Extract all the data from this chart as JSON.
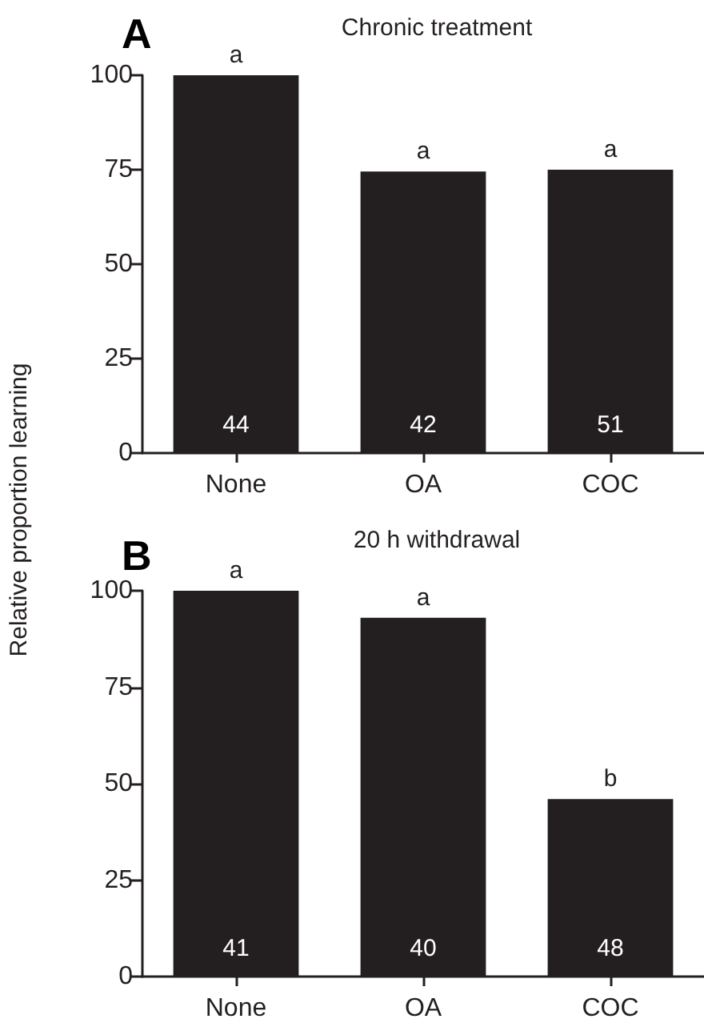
{
  "chart_data": [
    {
      "type": "bar",
      "title": "Chronic treatment",
      "ylabel": "Relative proportion learning",
      "categories": [
        "None",
        "OA",
        "COC"
      ],
      "values": [
        100,
        74.5,
        75
      ],
      "color": "#231f20",
      "ylim": [
        0,
        100
      ],
      "yticks": [
        0,
        25,
        50,
        75,
        100
      ],
      "grid": false,
      "annotations": [
        "A",
        {
          "text": "a",
          "x": "None",
          "y": 100
        },
        {
          "text": "a",
          "x": "OA",
          "y": 74.5
        },
        {
          "text": "a",
          "x": "COC",
          "y": 75
        },
        "44",
        "42",
        "51"
      ]
    },
    {
      "type": "bar",
      "title": "20 h withdrawal",
      "categories": [
        "None",
        "OA",
        "COC"
      ],
      "values": [
        100,
        93,
        46
      ],
      "color": "#231f20",
      "ylim": [
        0,
        100
      ],
      "yticks": [
        0,
        25,
        50,
        75,
        100
      ],
      "grid": false,
      "annotations": [
        "B",
        {
          "text": "a",
          "x": "None",
          "y": 100
        },
        {
          "text": "a",
          "x": "OA",
          "y": 93
        },
        {
          "text": "b",
          "x": "COC",
          "y": 46
        },
        "41",
        "40",
        "48"
      ]
    }
  ]
}
